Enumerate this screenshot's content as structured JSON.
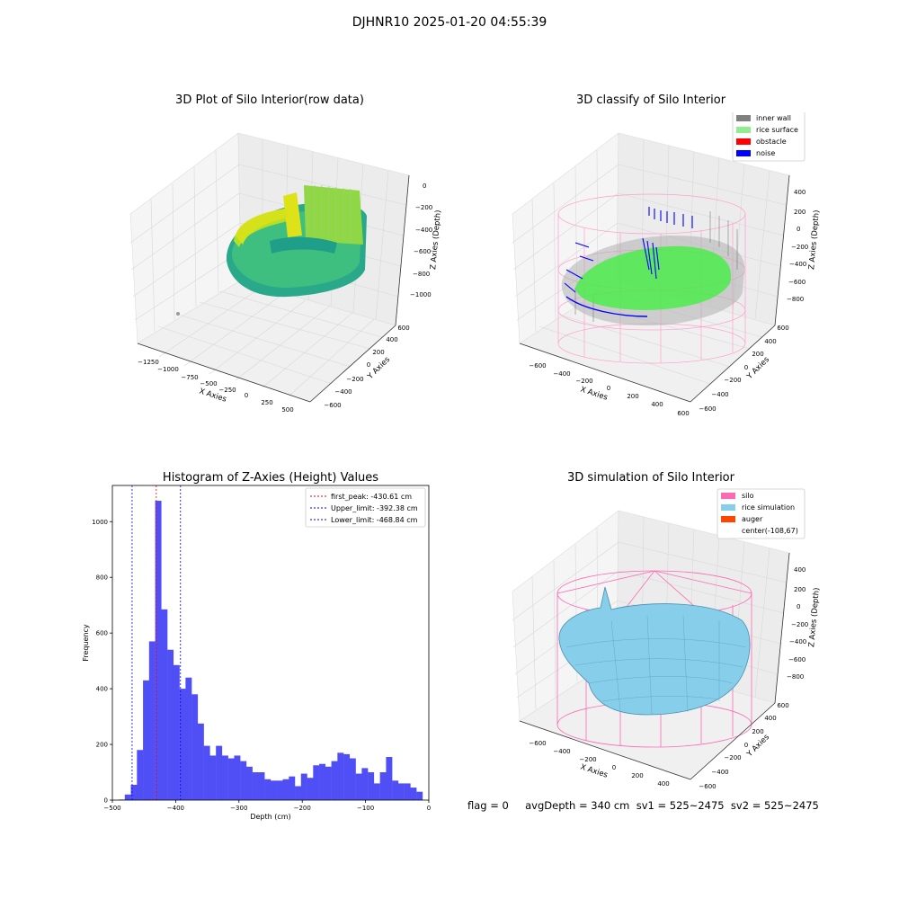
{
  "suptitle": "DJHNR10 2025-01-20 04:55:39",
  "panels": {
    "tl": {
      "title": "3D Plot of Silo Interior(row data)",
      "xlabel": "X Axies",
      "ylabel": "Y Axies",
      "zlabel": "Z Axies (Depth)",
      "xticks": [
        "−1250",
        "−1000",
        "−750",
        "−500",
        "−250",
        "0",
        "250",
        "500"
      ],
      "yticks": [
        "−600",
        "−400",
        "−200",
        "0",
        "200",
        "400",
        "600"
      ],
      "zticks": [
        "0",
        "−200",
        "−400",
        "−600",
        "−800",
        "−1000"
      ]
    },
    "tr": {
      "title": "3D classify of Silo Interior",
      "xlabel": "X Axies",
      "ylabel": "Y Axies",
      "zlabel": "Z Axies (Depth)",
      "xticks": [
        "−600",
        "−400",
        "−200",
        "0",
        "200",
        "400",
        "600"
      ],
      "yticks": [
        "−600",
        "−400",
        "−200",
        "0",
        "200",
        "400",
        "600"
      ],
      "zticks": [
        "400",
        "200",
        "0",
        "−200",
        "−400",
        "−600",
        "−800"
      ],
      "legend": [
        {
          "label": "inner wall",
          "color": "#808080"
        },
        {
          "label": "rice surface",
          "color": "#90ee90"
        },
        {
          "label": "obstacle",
          "color": "#ff0000"
        },
        {
          "label": "noise",
          "color": "#0000ff"
        }
      ]
    },
    "br": {
      "title": "3D simulation of Silo Interior",
      "xlabel": "X Axies",
      "ylabel": "Y Axies",
      "zlabel": "Z Axies (Depth)",
      "xticks": [
        "−600",
        "−400",
        "−200",
        "0",
        "200",
        "400"
      ],
      "yticks": [
        "−600",
        "−400",
        "−200",
        "0",
        "200",
        "400",
        "600"
      ],
      "zticks": [
        "400",
        "200",
        "0",
        "−200",
        "−400",
        "−600",
        "−800"
      ],
      "legend": [
        {
          "label": "silo",
          "color": "#ff69b4"
        },
        {
          "label": "rice simulation",
          "color": "#87ceeb"
        },
        {
          "label": "auger",
          "color": "#ff4500"
        },
        {
          "label": "center(-108,67)",
          "color": ""
        }
      ]
    }
  },
  "footer": "flag = 0     avgDepth = 340 cm  sv1 = 525~2475  sv2 = 525~2475",
  "chart_data": {
    "type": "bar",
    "title": "Histogram of Z-Axies (Height) Values",
    "xlabel": "Depth (cm)",
    "ylabel": "Frequency",
    "xlim": [
      -500,
      0
    ],
    "ylim": [
      0,
      1130
    ],
    "xticks": [
      -500,
      -400,
      -300,
      -200,
      -100,
      0
    ],
    "yticks": [
      0,
      200,
      400,
      600,
      800,
      1000
    ],
    "bin_start": -490,
    "bin_width": 9.6,
    "values": [
      2,
      20,
      55,
      180,
      430,
      570,
      1075,
      685,
      540,
      485,
      400,
      440,
      380,
      275,
      195,
      160,
      195,
      160,
      150,
      160,
      140,
      120,
      100,
      100,
      75,
      70,
      70,
      75,
      85,
      50,
      95,
      80,
      125,
      130,
      120,
      140,
      170,
      165,
      150,
      95,
      115,
      100,
      60,
      100,
      155,
      70,
      60,
      60,
      45,
      30
    ],
    "vlines": [
      {
        "label": "first_peak: -430.61 cm",
        "x": -430.61,
        "color": "#ff0000"
      },
      {
        "label": "Upper_limit: -392.38 cm",
        "x": -392.38,
        "color": "#0000ff"
      },
      {
        "label": "Lower_limit: -468.84 cm",
        "x": -468.84,
        "color": "#0000ff"
      }
    ],
    "bar_color": "#4f4ff5"
  }
}
